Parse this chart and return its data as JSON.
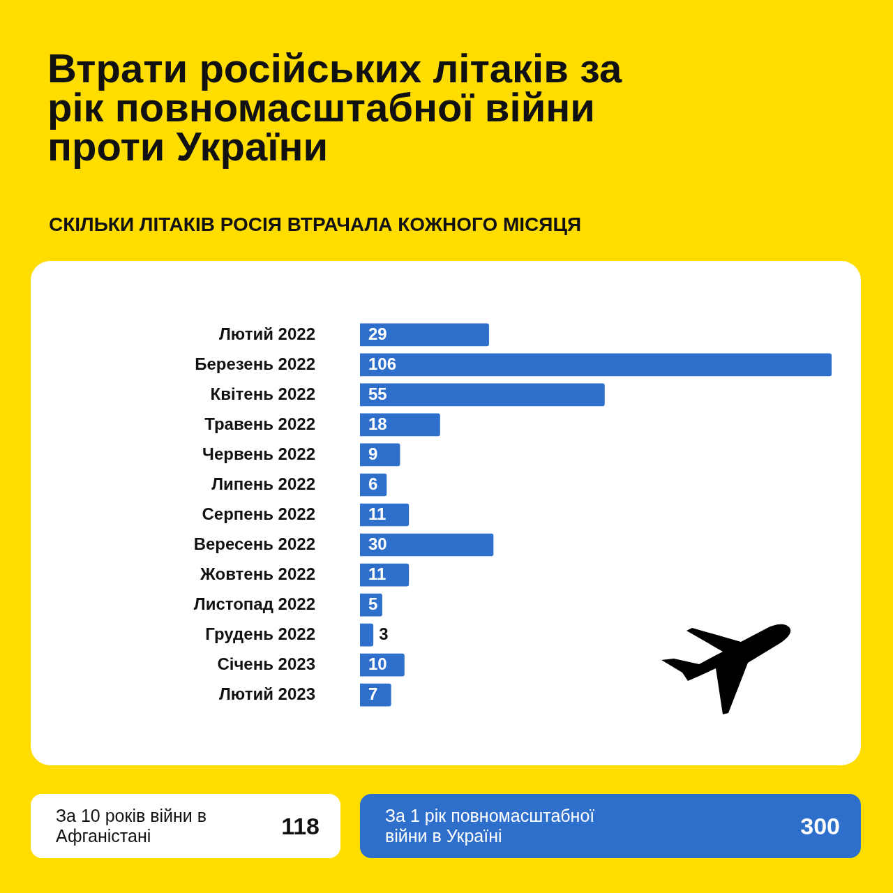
{
  "chart_data": {
    "type": "bar",
    "orientation": "horizontal",
    "title": "Втрати російських літаків за рік повномасштабної війни проти України",
    "subtitle": "СКІЛЬКИ ЛІТАКІВ РОСІЯ ВТРАЧАЛА КОЖНОГО МІСЯЦЯ",
    "categories": [
      "Лютий 2022",
      "Березень 2022",
      "Квітень 2022",
      "Травень 2022",
      "Червень 2022",
      "Липень 2022",
      "Серпень 2022",
      "Вересень 2022",
      "Жовтень 2022",
      "Листопад 2022",
      "Грудень 2022",
      "Січень 2023",
      "Лютий 2023"
    ],
    "values": [
      29,
      106,
      55,
      18,
      9,
      6,
      11,
      30,
      11,
      5,
      3,
      10,
      7
    ],
    "color": "#2e6fcc",
    "data_labels": true,
    "legend": false,
    "tick_labels": "y",
    "annotations": [
      "За 10 років війни в Афганістані",
      "118",
      "За 1 рік повномасштабної війни в Україні",
      "300"
    ]
  }
}
